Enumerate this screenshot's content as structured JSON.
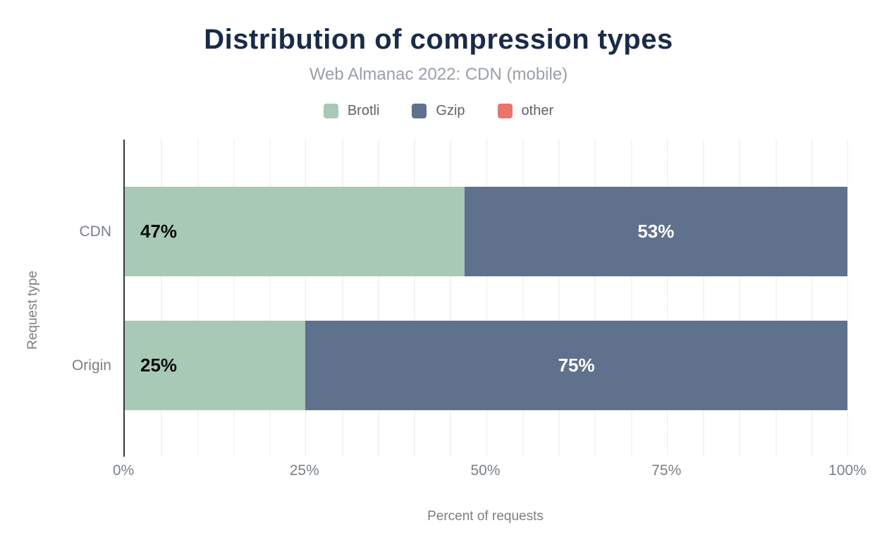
{
  "header": {
    "title": "Distribution of compression types",
    "subtitle": "Web Almanac 2022: CDN (mobile)"
  },
  "legend": {
    "items": [
      {
        "label": "Brotli",
        "color": "#a8c9b6"
      },
      {
        "label": "Gzip",
        "color": "#5f718d"
      },
      {
        "label": "other",
        "color": "#e8756c"
      }
    ]
  },
  "chart_data": {
    "type": "bar",
    "orientation": "horizontal",
    "stacked": true,
    "title": "Distribution of compression types",
    "subtitle": "Web Almanac 2022: CDN (mobile)",
    "categories": [
      "CDN",
      "Origin"
    ],
    "series": [
      {
        "name": "Brotli",
        "color": "#a8c9b6",
        "values": [
          47,
          25
        ],
        "labels": [
          "47%",
          "25%"
        ],
        "label_color": "#0c0c0c",
        "label_align": "left"
      },
      {
        "name": "Gzip",
        "color": "#5f718d",
        "values": [
          53,
          75
        ],
        "labels": [
          "53%",
          "75%"
        ],
        "label_color": "#ffffff",
        "label_align": "center"
      },
      {
        "name": "other",
        "color": "#e8756c",
        "values": [
          0,
          0
        ],
        "labels": [
          "",
          ""
        ],
        "label_color": "#ffffff",
        "label_align": "center"
      }
    ],
    "xlabel": "Percent of requests",
    "ylabel": "Request type",
    "xlim": [
      0,
      100
    ],
    "x_ticks": [
      "0%",
      "25%",
      "50%",
      "75%",
      "100%"
    ],
    "x_tick_values": [
      0,
      25,
      50,
      75,
      100
    ],
    "minor_grid_step": 5,
    "major_grid_step": 25,
    "grid": true,
    "legend_position": "top"
  },
  "colors": {
    "title": "#1a2b49",
    "subtitle": "#9aa0a6",
    "axis_text": "#7a8086",
    "axis_line": "#33373d",
    "minor_grid": "#f4f4f4",
    "major_grid": "#dcdcdc",
    "background": "#ffffff"
  }
}
